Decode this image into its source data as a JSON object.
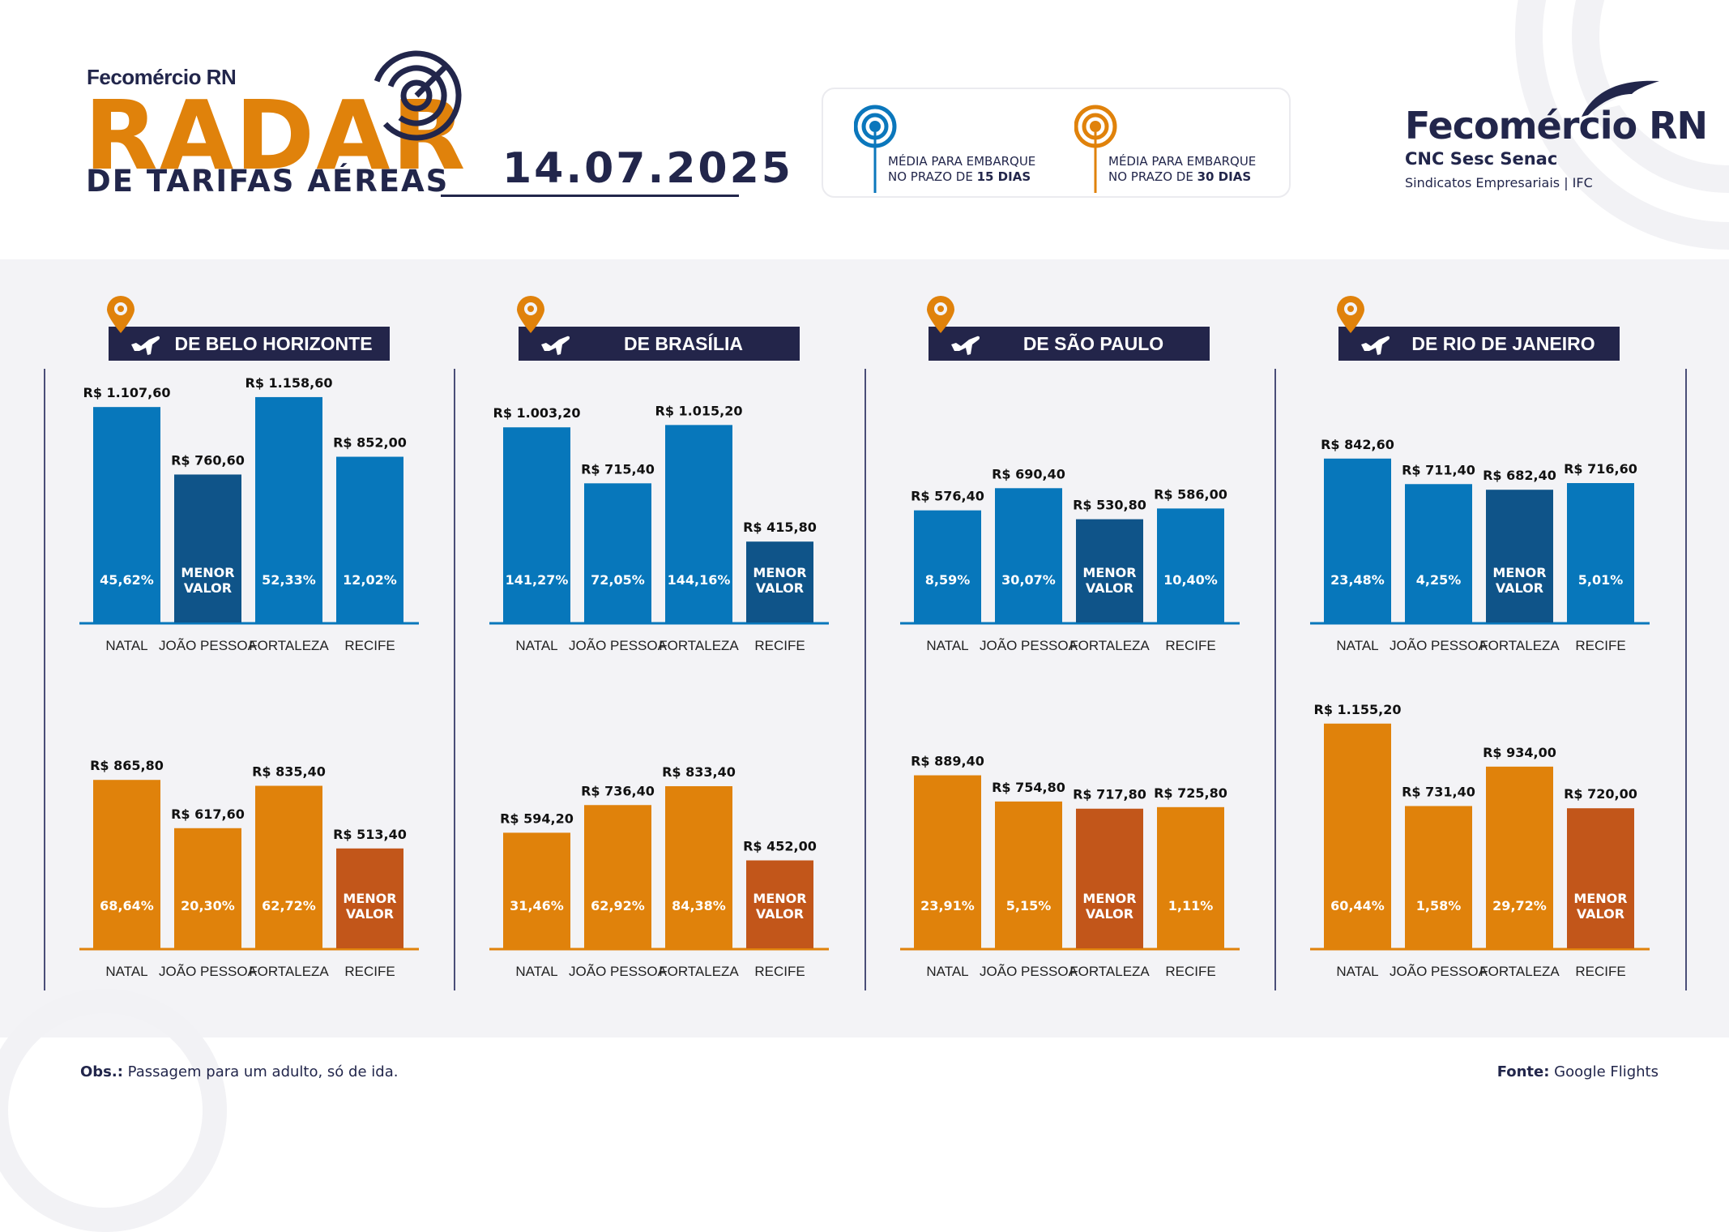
{
  "header": {
    "brand_small": "Fecomércio RN",
    "title": "RADAR",
    "subtitle": "DE TARIFAS AÉREAS",
    "date": "14.07.2025"
  },
  "legend": {
    "items": [
      {
        "icon": "radar-antenna-icon",
        "line1": "MÉDIA PARA EMBARQUE",
        "line2_prefix": "NO PRAZO DE ",
        "line2_bold": "15 DIAS",
        "color": "#0b77bc"
      },
      {
        "icon": "radar-antenna-icon",
        "line1": "MÉDIA PARA EMBARQUE",
        "line2_prefix": "NO PRAZO DE ",
        "line2_bold": "30 DIAS",
        "color": "#e0820b"
      }
    ]
  },
  "logo_right": {
    "name": "Fecomércio RN",
    "sub": "CNC Sesc Senac",
    "sub2": "Sindicatos Empresariais  |  IFC"
  },
  "colors": {
    "navy": "#23254a",
    "blue": "#0777bb",
    "blue_lowest": "#0f5489",
    "orange": "#e0820b",
    "orange_lowest": "#c2561a",
    "background": "#f3f3f6"
  },
  "chart_data": [
    {
      "type": "bar",
      "title": "DE BELO HORIZONTE",
      "categories": [
        "NATAL",
        "JOÃO PESSOA",
        "FORTALEZA",
        "RECIFE"
      ],
      "series": [
        {
          "name": "MÉDIA PARA EMBARQUE NO PRAZO DE 15 DIAS",
          "values": [
            1107.6,
            760.6,
            1158.6,
            852.0
          ],
          "value_labels": [
            "R$ 1.107,60",
            "R$ 760,60",
            "R$ 1.158,60",
            "R$ 852,00"
          ],
          "inner_labels": [
            "45,62%",
            "MENOR VALOR",
            "52,33%",
            "12,02%"
          ],
          "lowest_index": 1
        },
        {
          "name": "MÉDIA PARA EMBARQUE NO PRAZO DE 30 DIAS",
          "values": [
            865.8,
            617.6,
            835.4,
            513.4
          ],
          "value_labels": [
            "R$ 865,80",
            "R$ 617,60",
            "R$ 835,40",
            "R$ 513,40"
          ],
          "inner_labels": [
            "68,64%",
            "20,30%",
            "62,72%",
            "MENOR VALOR"
          ],
          "lowest_index": 3
        }
      ],
      "ylim": [
        0,
        1200
      ],
      "grid": false
    },
    {
      "type": "bar",
      "title": "DE BRASÍLIA",
      "categories": [
        "NATAL",
        "JOÃO PESSOA",
        "FORTALEZA",
        "RECIFE"
      ],
      "series": [
        {
          "name": "MÉDIA PARA EMBARQUE NO PRAZO DE 15 DIAS",
          "values": [
            1003.2,
            715.4,
            1015.2,
            415.8
          ],
          "value_labels": [
            "R$ 1.003,20",
            "R$ 715,40",
            "R$ 1.015,20",
            "R$ 415,80"
          ],
          "inner_labels": [
            "141,27%",
            "72,05%",
            "144,16%",
            "MENOR VALOR"
          ],
          "lowest_index": 3
        },
        {
          "name": "MÉDIA PARA EMBARQUE NO PRAZO DE 30 DIAS",
          "values": [
            594.2,
            736.4,
            833.4,
            452.0
          ],
          "value_labels": [
            "R$ 594,20",
            "R$ 736,40",
            "R$ 833,40",
            "R$ 452,00"
          ],
          "inner_labels": [
            "31,46%",
            "62,92%",
            "84,38%",
            "MENOR VALOR"
          ],
          "lowest_index": 3
        }
      ],
      "ylim": [
        0,
        1200
      ],
      "grid": false
    },
    {
      "type": "bar",
      "title": "DE SÃO PAULO",
      "categories": [
        "NATAL",
        "JOÃO PESSOA",
        "FORTALEZA",
        "RECIFE"
      ],
      "series": [
        {
          "name": "MÉDIA PARA EMBARQUE NO PRAZO DE 15 DIAS",
          "values": [
            576.4,
            690.4,
            530.8,
            586.0
          ],
          "value_labels": [
            "R$ 576,40",
            "R$ 690,40",
            "R$ 530,80",
            "R$ 586,00"
          ],
          "inner_labels": [
            "8,59%",
            "30,07%",
            "MENOR VALOR",
            "10,40%"
          ],
          "lowest_index": 2
        },
        {
          "name": "MÉDIA PARA EMBARQUE NO PRAZO DE 30 DIAS",
          "values": [
            889.4,
            754.8,
            717.8,
            725.8
          ],
          "value_labels": [
            "R$ 889,40",
            "R$ 754,80",
            "R$ 717,80",
            "R$ 725,80"
          ],
          "inner_labels": [
            "23,91%",
            "5,15%",
            "MENOR VALOR",
            "1,11%"
          ],
          "lowest_index": 2
        }
      ],
      "ylim": [
        0,
        1200
      ],
      "grid": false
    },
    {
      "type": "bar",
      "title": "DE RIO DE JANEIRO",
      "categories": [
        "NATAL",
        "JOÃO PESSOA",
        "FORTALEZA",
        "RECIFE"
      ],
      "series": [
        {
          "name": "MÉDIA PARA EMBARQUE NO PRAZO DE 15 DIAS",
          "values": [
            842.6,
            711.4,
            682.4,
            716.6
          ],
          "value_labels": [
            "R$ 842,60",
            "R$ 711,40",
            "R$ 682,40",
            "R$ 716,60"
          ],
          "inner_labels": [
            "23,48%",
            "4,25%",
            "MENOR VALOR",
            "5,01%"
          ],
          "lowest_index": 2
        },
        {
          "name": "MÉDIA PARA EMBARQUE NO PRAZO DE 30 DIAS",
          "values": [
            1155.2,
            731.4,
            934.0,
            720.0
          ],
          "value_labels": [
            "R$ 1.155,20",
            "R$ 731,40",
            "R$ 934,00",
            "R$ 720,00"
          ],
          "inner_labels": [
            "60,44%",
            "1,58%",
            "29,72%",
            "MENOR VALOR"
          ],
          "lowest_index": 3
        }
      ],
      "ylim": [
        0,
        1200
      ],
      "grid": false
    }
  ],
  "footer": {
    "obs_label": "Obs.:",
    "obs_text": " Passagem para um adulto, só de ida.",
    "source_label": "Fonte:",
    "source_text": " Google Flights"
  }
}
